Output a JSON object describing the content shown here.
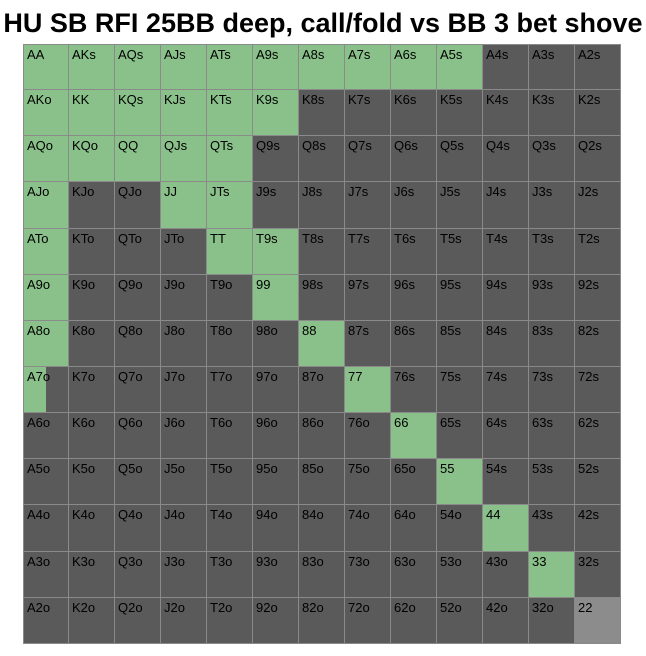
{
  "title": "HU SB RFI 25BB deep, call/fold vs BB 3 bet shove",
  "colors": {
    "call": "#8ac18a",
    "fold": "#5a5a5a",
    "mixed_gray": "#8c8c8c"
  },
  "grid": [
    [
      {
        "l": "AA",
        "s": "call"
      },
      {
        "l": "AKs",
        "s": "call"
      },
      {
        "l": "AQs",
        "s": "call"
      },
      {
        "l": "AJs",
        "s": "call"
      },
      {
        "l": "ATs",
        "s": "call"
      },
      {
        "l": "A9s",
        "s": "call"
      },
      {
        "l": "A8s",
        "s": "call"
      },
      {
        "l": "A7s",
        "s": "call"
      },
      {
        "l": "A6s",
        "s": "call"
      },
      {
        "l": "A5s",
        "s": "call"
      },
      {
        "l": "A4s",
        "s": "fold"
      },
      {
        "l": "A3s",
        "s": "fold"
      },
      {
        "l": "A2s",
        "s": "fold"
      }
    ],
    [
      {
        "l": "AKo",
        "s": "call"
      },
      {
        "l": "KK",
        "s": "call"
      },
      {
        "l": "KQs",
        "s": "call"
      },
      {
        "l": "KJs",
        "s": "call"
      },
      {
        "l": "KTs",
        "s": "call"
      },
      {
        "l": "K9s",
        "s": "call"
      },
      {
        "l": "K8s",
        "s": "fold"
      },
      {
        "l": "K7s",
        "s": "fold"
      },
      {
        "l": "K6s",
        "s": "fold"
      },
      {
        "l": "K5s",
        "s": "fold"
      },
      {
        "l": "K4s",
        "s": "fold"
      },
      {
        "l": "K3s",
        "s": "fold"
      },
      {
        "l": "K2s",
        "s": "fold"
      }
    ],
    [
      {
        "l": "AQo",
        "s": "call"
      },
      {
        "l": "KQo",
        "s": "call"
      },
      {
        "l": "QQ",
        "s": "call"
      },
      {
        "l": "QJs",
        "s": "call"
      },
      {
        "l": "QTs",
        "s": "call"
      },
      {
        "l": "Q9s",
        "s": "fold"
      },
      {
        "l": "Q8s",
        "s": "fold"
      },
      {
        "l": "Q7s",
        "s": "fold"
      },
      {
        "l": "Q6s",
        "s": "fold"
      },
      {
        "l": "Q5s",
        "s": "fold"
      },
      {
        "l": "Q4s",
        "s": "fold"
      },
      {
        "l": "Q3s",
        "s": "fold"
      },
      {
        "l": "Q2s",
        "s": "fold"
      }
    ],
    [
      {
        "l": "AJo",
        "s": "call"
      },
      {
        "l": "KJo",
        "s": "fold"
      },
      {
        "l": "QJo",
        "s": "fold"
      },
      {
        "l": "JJ",
        "s": "call"
      },
      {
        "l": "JTs",
        "s": "call"
      },
      {
        "l": "J9s",
        "s": "fold"
      },
      {
        "l": "J8s",
        "s": "fold"
      },
      {
        "l": "J7s",
        "s": "fold"
      },
      {
        "l": "J6s",
        "s": "fold"
      },
      {
        "l": "J5s",
        "s": "fold"
      },
      {
        "l": "J4s",
        "s": "fold"
      },
      {
        "l": "J3s",
        "s": "fold"
      },
      {
        "l": "J2s",
        "s": "fold"
      }
    ],
    [
      {
        "l": "ATo",
        "s": "call"
      },
      {
        "l": "KTo",
        "s": "fold"
      },
      {
        "l": "QTo",
        "s": "fold"
      },
      {
        "l": "JTo",
        "s": "fold"
      },
      {
        "l": "TT",
        "s": "call"
      },
      {
        "l": "T9s",
        "s": "call"
      },
      {
        "l": "T8s",
        "s": "fold"
      },
      {
        "l": "T7s",
        "s": "fold"
      },
      {
        "l": "T6s",
        "s": "fold"
      },
      {
        "l": "T5s",
        "s": "fold"
      },
      {
        "l": "T4s",
        "s": "fold"
      },
      {
        "l": "T3s",
        "s": "fold"
      },
      {
        "l": "T2s",
        "s": "fold"
      }
    ],
    [
      {
        "l": "A9o",
        "s": "call"
      },
      {
        "l": "K9o",
        "s": "fold"
      },
      {
        "l": "Q9o",
        "s": "fold"
      },
      {
        "l": "J9o",
        "s": "fold"
      },
      {
        "l": "T9o",
        "s": "fold"
      },
      {
        "l": "99",
        "s": "call"
      },
      {
        "l": "98s",
        "s": "fold"
      },
      {
        "l": "97s",
        "s": "fold"
      },
      {
        "l": "96s",
        "s": "fold"
      },
      {
        "l": "95s",
        "s": "fold"
      },
      {
        "l": "94s",
        "s": "fold"
      },
      {
        "l": "93s",
        "s": "fold"
      },
      {
        "l": "92s",
        "s": "fold"
      }
    ],
    [
      {
        "l": "A8o",
        "s": "call"
      },
      {
        "l": "K8o",
        "s": "fold"
      },
      {
        "l": "Q8o",
        "s": "fold"
      },
      {
        "l": "J8o",
        "s": "fold"
      },
      {
        "l": "T8o",
        "s": "fold"
      },
      {
        "l": "98o",
        "s": "fold"
      },
      {
        "l": "88",
        "s": "call"
      },
      {
        "l": "87s",
        "s": "fold"
      },
      {
        "l": "86s",
        "s": "fold"
      },
      {
        "l": "85s",
        "s": "fold"
      },
      {
        "l": "84s",
        "s": "fold"
      },
      {
        "l": "83s",
        "s": "fold"
      },
      {
        "l": "82s",
        "s": "fold"
      }
    ],
    [
      {
        "l": "A7o",
        "s": "partial",
        "f": 0.5
      },
      {
        "l": "K7o",
        "s": "fold"
      },
      {
        "l": "Q7o",
        "s": "fold"
      },
      {
        "l": "J7o",
        "s": "fold"
      },
      {
        "l": "T7o",
        "s": "fold"
      },
      {
        "l": "97o",
        "s": "fold"
      },
      {
        "l": "87o",
        "s": "fold"
      },
      {
        "l": "77",
        "s": "call"
      },
      {
        "l": "76s",
        "s": "fold"
      },
      {
        "l": "75s",
        "s": "fold"
      },
      {
        "l": "74s",
        "s": "fold"
      },
      {
        "l": "73s",
        "s": "fold"
      },
      {
        "l": "72s",
        "s": "fold"
      }
    ],
    [
      {
        "l": "A6o",
        "s": "fold"
      },
      {
        "l": "K6o",
        "s": "fold"
      },
      {
        "l": "Q6o",
        "s": "fold"
      },
      {
        "l": "J6o",
        "s": "fold"
      },
      {
        "l": "T6o",
        "s": "fold"
      },
      {
        "l": "96o",
        "s": "fold"
      },
      {
        "l": "86o",
        "s": "fold"
      },
      {
        "l": "76o",
        "s": "fold"
      },
      {
        "l": "66",
        "s": "call"
      },
      {
        "l": "65s",
        "s": "fold"
      },
      {
        "l": "64s",
        "s": "fold"
      },
      {
        "l": "63s",
        "s": "fold"
      },
      {
        "l": "62s",
        "s": "fold"
      }
    ],
    [
      {
        "l": "A5o",
        "s": "fold"
      },
      {
        "l": "K5o",
        "s": "fold"
      },
      {
        "l": "Q5o",
        "s": "fold"
      },
      {
        "l": "J5o",
        "s": "fold"
      },
      {
        "l": "T5o",
        "s": "fold"
      },
      {
        "l": "95o",
        "s": "fold"
      },
      {
        "l": "85o",
        "s": "fold"
      },
      {
        "l": "75o",
        "s": "fold"
      },
      {
        "l": "65o",
        "s": "fold"
      },
      {
        "l": "55",
        "s": "call"
      },
      {
        "l": "54s",
        "s": "fold"
      },
      {
        "l": "53s",
        "s": "fold"
      },
      {
        "l": "52s",
        "s": "fold"
      }
    ],
    [
      {
        "l": "A4o",
        "s": "fold"
      },
      {
        "l": "K4o",
        "s": "fold"
      },
      {
        "l": "Q4o",
        "s": "fold"
      },
      {
        "l": "J4o",
        "s": "fold"
      },
      {
        "l": "T4o",
        "s": "fold"
      },
      {
        "l": "94o",
        "s": "fold"
      },
      {
        "l": "84o",
        "s": "fold"
      },
      {
        "l": "74o",
        "s": "fold"
      },
      {
        "l": "64o",
        "s": "fold"
      },
      {
        "l": "54o",
        "s": "fold"
      },
      {
        "l": "44",
        "s": "call"
      },
      {
        "l": "43s",
        "s": "fold"
      },
      {
        "l": "42s",
        "s": "fold"
      }
    ],
    [
      {
        "l": "A3o",
        "s": "fold"
      },
      {
        "l": "K3o",
        "s": "fold"
      },
      {
        "l": "Q3o",
        "s": "fold"
      },
      {
        "l": "J3o",
        "s": "fold"
      },
      {
        "l": "T3o",
        "s": "fold"
      },
      {
        "l": "93o",
        "s": "fold"
      },
      {
        "l": "83o",
        "s": "fold"
      },
      {
        "l": "73o",
        "s": "fold"
      },
      {
        "l": "63o",
        "s": "fold"
      },
      {
        "l": "53o",
        "s": "fold"
      },
      {
        "l": "43o",
        "s": "fold"
      },
      {
        "l": "33",
        "s": "call"
      },
      {
        "l": "32s",
        "s": "fold"
      }
    ],
    [
      {
        "l": "A2o",
        "s": "fold"
      },
      {
        "l": "K2o",
        "s": "fold"
      },
      {
        "l": "Q2o",
        "s": "fold"
      },
      {
        "l": "J2o",
        "s": "fold"
      },
      {
        "l": "T2o",
        "s": "fold"
      },
      {
        "l": "92o",
        "s": "fold"
      },
      {
        "l": "82o",
        "s": "fold"
      },
      {
        "l": "72o",
        "s": "fold"
      },
      {
        "l": "62o",
        "s": "fold"
      },
      {
        "l": "52o",
        "s": "fold"
      },
      {
        "l": "42o",
        "s": "fold"
      },
      {
        "l": "32o",
        "s": "fold"
      },
      {
        "l": "22",
        "s": "gray"
      }
    ]
  ]
}
